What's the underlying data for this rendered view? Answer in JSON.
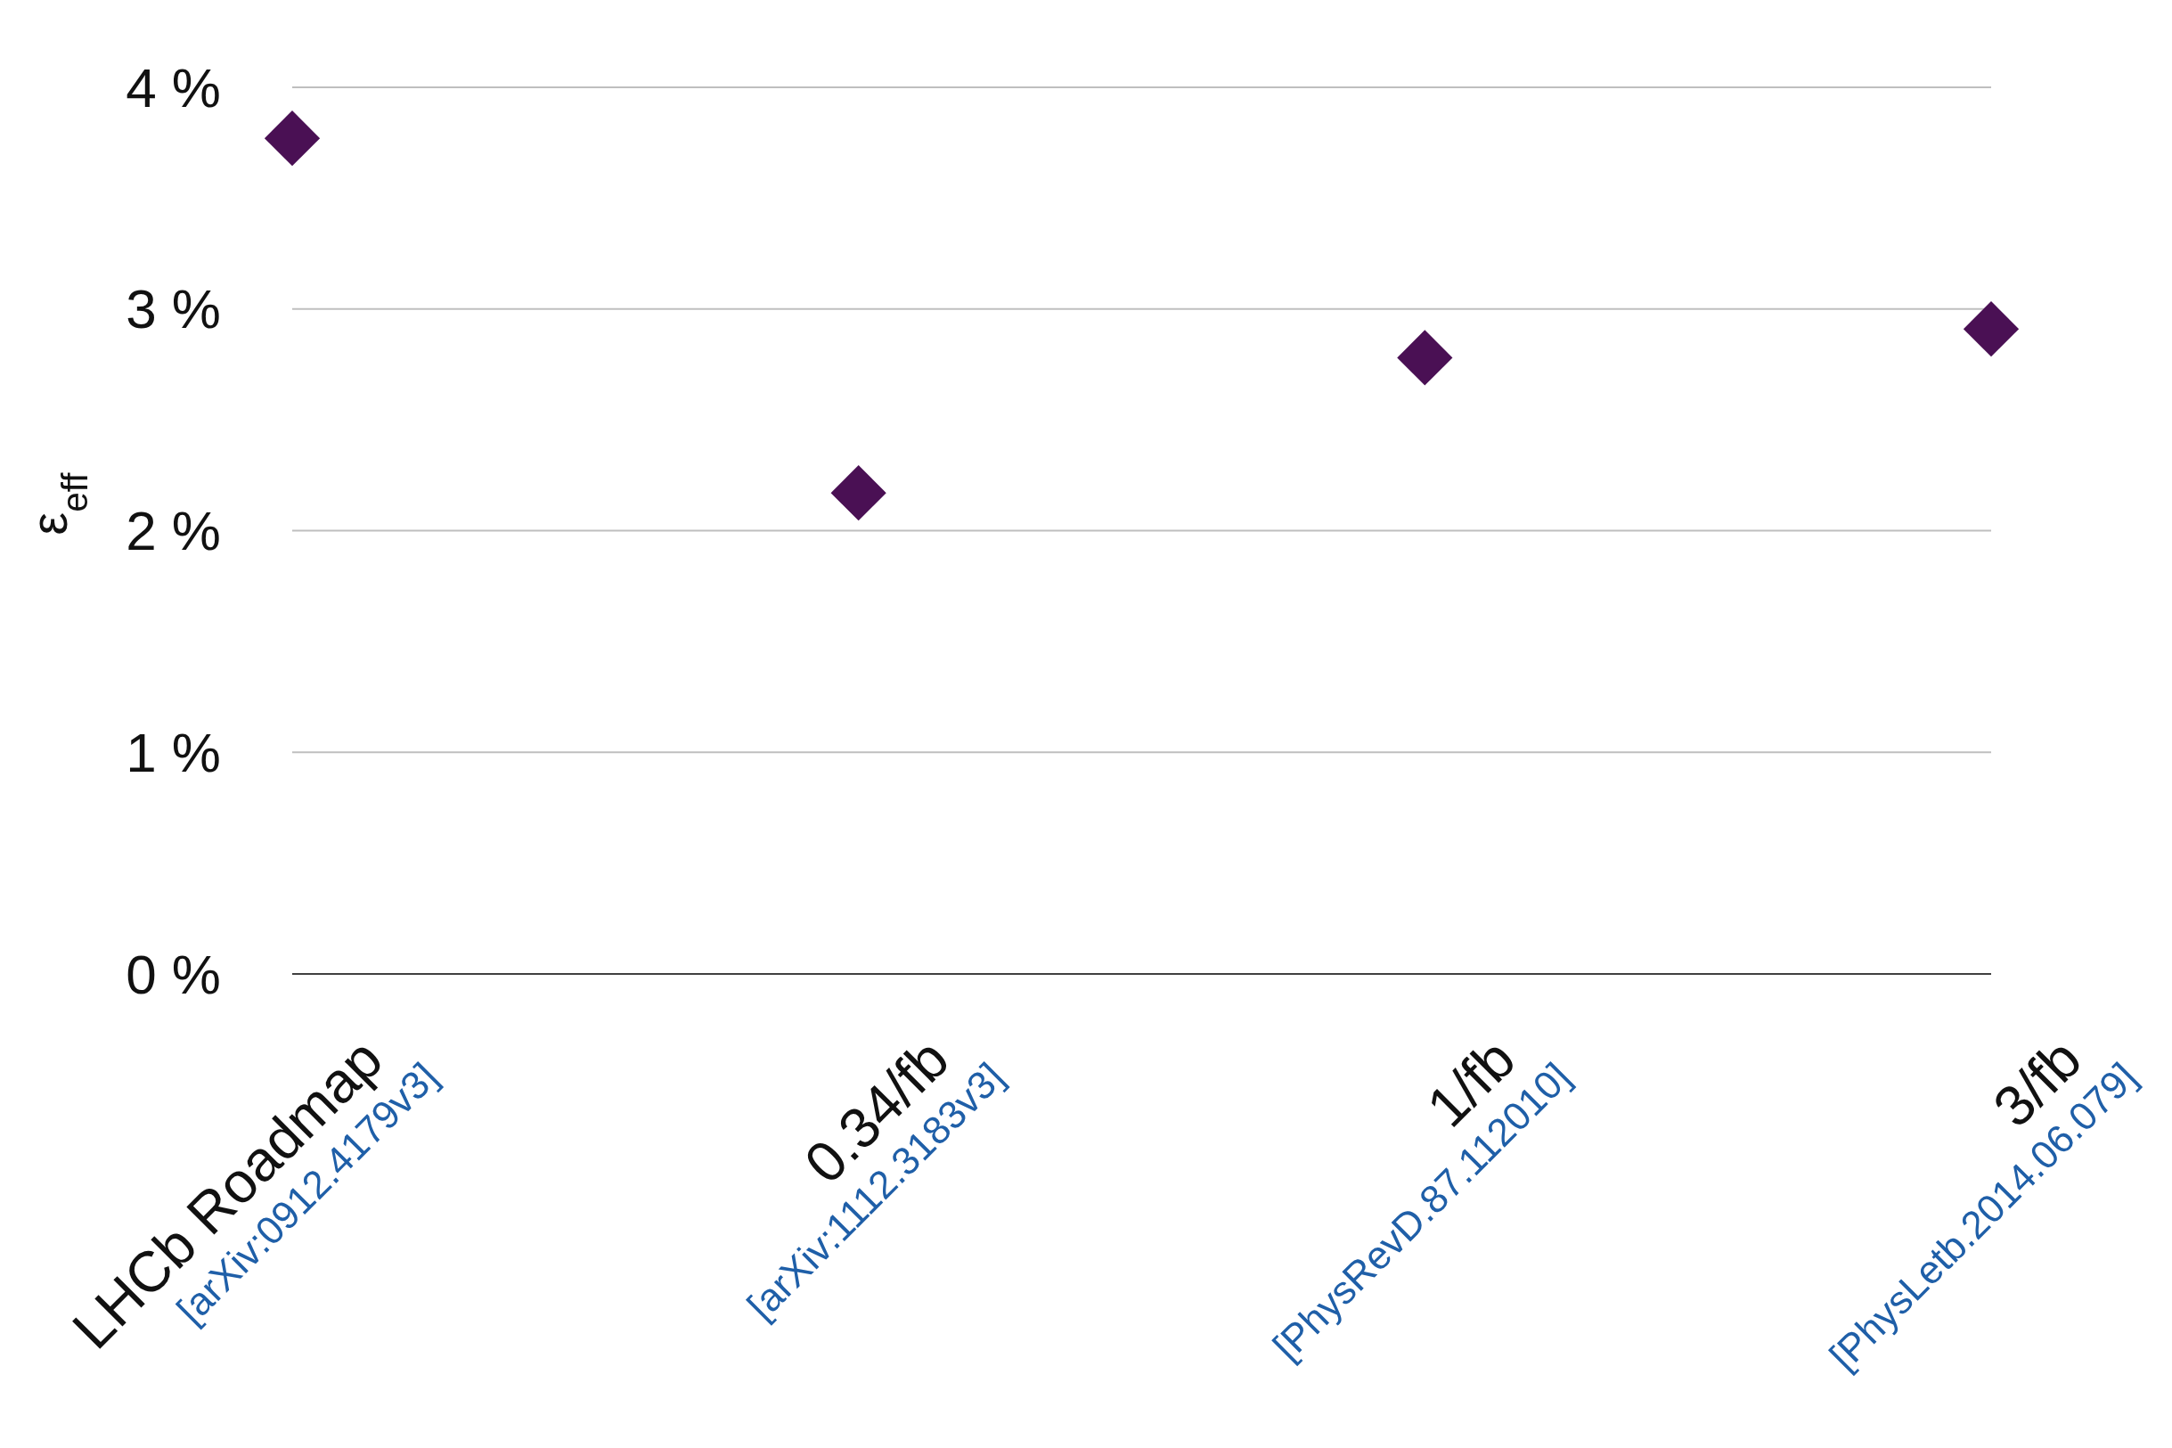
{
  "chart_data": {
    "type": "scatter",
    "ylabel": "ε$_{eff}$",
    "categories": [
      "LHCb Roadmap",
      "0.34/fb",
      "1/fb",
      "3/fb"
    ],
    "series": [
      {
        "color": "#4a1054",
        "values": [
          3.77,
          2.17,
          2.78,
          2.91
        ]
      }
    ],
    "ylim": [
      0,
      4
    ],
    "yticks": [
      {
        "value": 0,
        "label": "0 %"
      },
      {
        "value": 1,
        "label": "1 %"
      },
      {
        "value": 2,
        "label": "2 %"
      },
      {
        "value": 3,
        "label": "3 %"
      },
      {
        "value": 4,
        "label": "4 %"
      }
    ],
    "grid": "y",
    "marker": "diamond",
    "annotations": [
      "[arXiv:0912.4179v3]",
      "[arXiv:1112.3183v3]",
      "[PhysRevD.87.112010]",
      "[PhysLetb.2014.06.079]"
    ]
  }
}
